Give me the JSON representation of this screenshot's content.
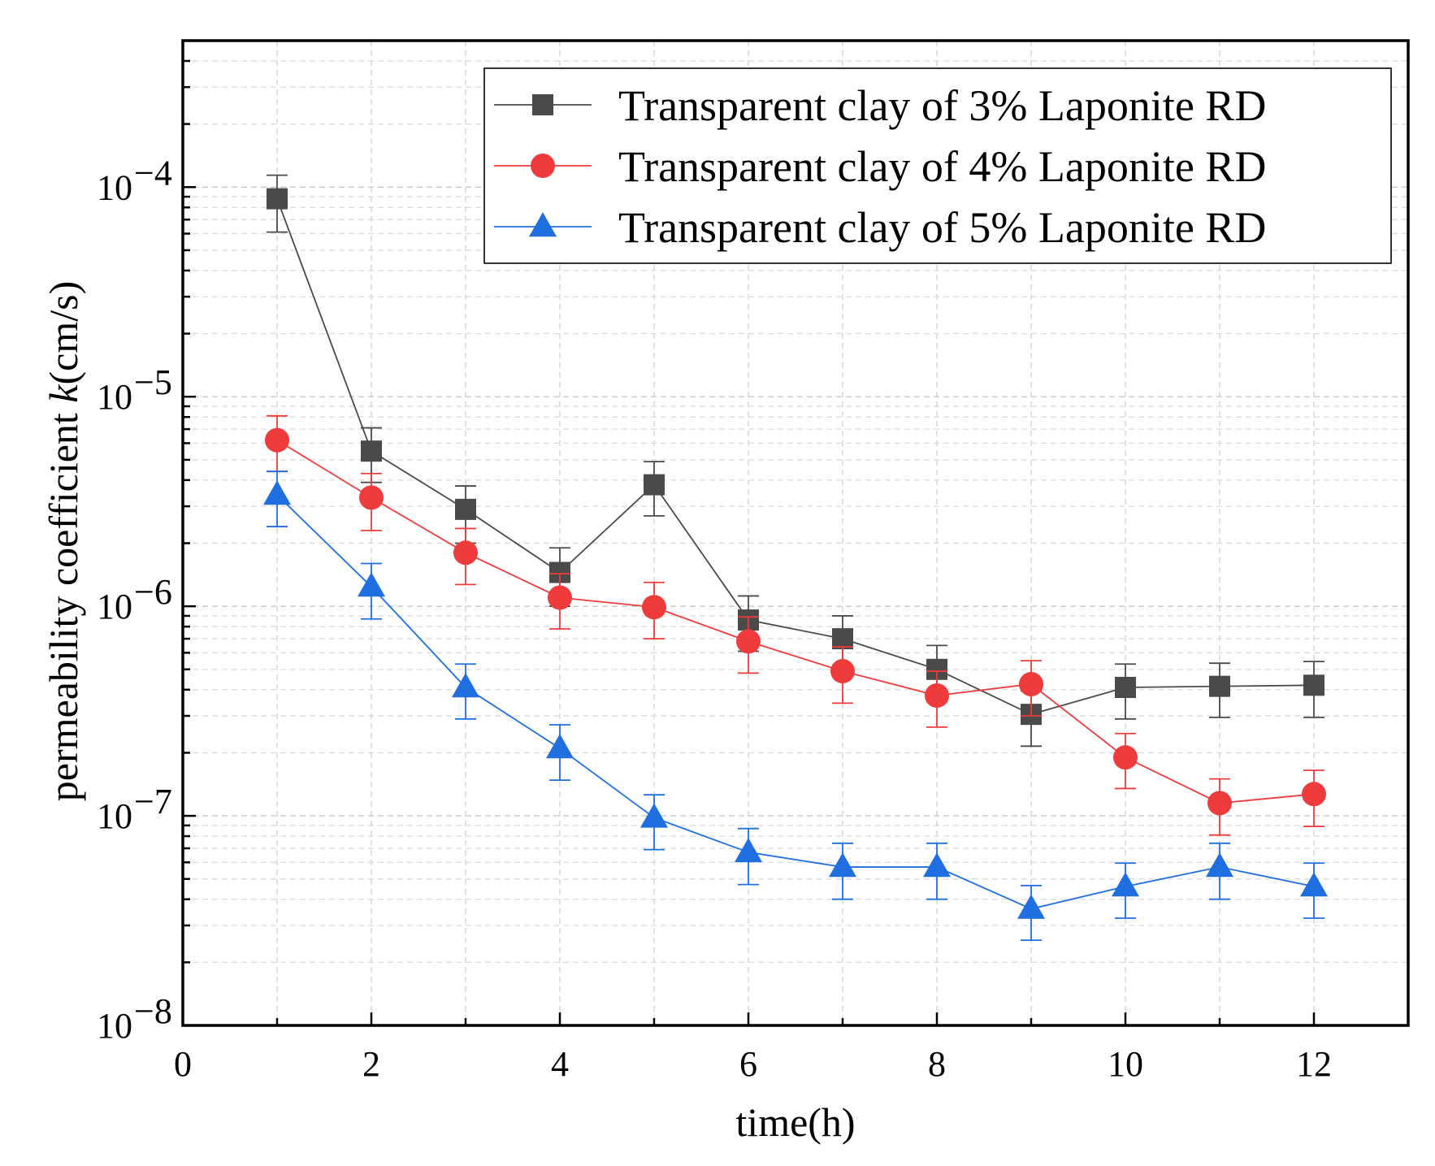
{
  "chart_data": {
    "type": "line",
    "xlabel": "time(h)",
    "ylabel_prefix": "permeability coefficient ",
    "ylabel_italic": "k",
    "ylabel_suffix": "(cm/s)",
    "yscale": "log",
    "xlim": [
      0,
      13
    ],
    "ylim": [
      1e-08,
      0.0005
    ],
    "grid": true,
    "legend_position": "top-right",
    "xticks": [
      0,
      2,
      4,
      6,
      8,
      10,
      12
    ],
    "xtick_labels": [
      "0",
      "2",
      "4",
      "6",
      "8",
      "10",
      "12"
    ],
    "yticks": [
      1e-08,
      1e-07,
      1e-06,
      1e-05,
      0.0001
    ],
    "ytick_labels": [
      {
        "base": "10",
        "exp": "−8"
      },
      {
        "base": "10",
        "exp": "−7"
      },
      {
        "base": "10",
        "exp": "−6"
      },
      {
        "base": "10",
        "exp": "−5"
      },
      {
        "base": "10",
        "exp": "−4"
      }
    ],
    "series": [
      {
        "name": "Transparent clay of 3% Laponite RD",
        "marker": "square",
        "color": "#4a4a4a",
        "x": [
          1,
          2,
          3,
          4,
          5,
          6,
          7,
          8,
          9,
          10,
          11,
          12
        ],
        "y": [
          8.8e-05,
          5.5e-06,
          2.9e-06,
          1.45e-06,
          3.8e-06,
          8.6e-07,
          7e-07,
          5e-07,
          3.05e-07,
          4.1e-07,
          4.15e-07,
          4.2e-07
        ],
        "err_low": [
          6.1e-05,
          3.9e-06,
          2e-06,
          1e-06,
          2.7e-06,
          6.1e-07,
          4.9e-07,
          3.5e-07,
          2.15e-07,
          2.9e-07,
          2.95e-07,
          2.95e-07
        ],
        "err_high": [
          0.000114,
          7.1e-06,
          3.75e-06,
          1.9e-06,
          4.9e-06,
          1.12e-06,
          9e-07,
          6.5e-07,
          3.95e-07,
          5.3e-07,
          5.35e-07,
          5.45e-07
        ]
      },
      {
        "name": "Transparent clay of 4% Laponite RD",
        "marker": "circle",
        "color": "#ef3b3b",
        "x": [
          1,
          2,
          3,
          4,
          5,
          6,
          7,
          8,
          9,
          10,
          11,
          12
        ],
        "y": [
          6.2e-06,
          3.3e-06,
          1.8e-06,
          1.1e-06,
          9.9e-07,
          6.8e-07,
          4.9e-07,
          3.75e-07,
          4.25e-07,
          1.9e-07,
          1.15e-07,
          1.27e-07
        ],
        "err_low": [
          4.4e-06,
          2.3e-06,
          1.27e-06,
          7.8e-07,
          7e-07,
          4.8e-07,
          3.45e-07,
          2.65e-07,
          3e-07,
          1.35e-07,
          8.1e-08,
          8.9e-08
        ],
        "err_high": [
          8.1e-06,
          4.3e-06,
          2.35e-06,
          1.43e-06,
          1.3e-06,
          8.9e-07,
          6.4e-07,
          4.9e-07,
          5.5e-07,
          2.47e-07,
          1.5e-07,
          1.65e-07
        ]
      },
      {
        "name": "Transparent clay of 5% Laponite RD",
        "marker": "triangle",
        "color": "#1f6fe0",
        "x": [
          1,
          2,
          3,
          4,
          5,
          6,
          7,
          8,
          9,
          10,
          11,
          12
        ],
        "y": [
          3.4e-06,
          1.24e-06,
          4.1e-07,
          2.1e-07,
          9.8e-08,
          6.7e-08,
          5.7e-08,
          5.7e-08,
          3.6e-08,
          4.6e-08,
          5.7e-08,
          4.6e-08
        ],
        "err_low": [
          2.4e-06,
          8.7e-07,
          2.9e-07,
          1.48e-07,
          6.9e-08,
          4.7e-08,
          4e-08,
          4e-08,
          2.55e-08,
          3.25e-08,
          4e-08,
          3.25e-08
        ],
        "err_high": [
          4.4e-06,
          1.6e-06,
          5.3e-07,
          2.72e-07,
          1.26e-07,
          8.7e-08,
          7.4e-08,
          7.4e-08,
          4.65e-08,
          5.95e-08,
          7.4e-08,
          5.95e-08
        ]
      }
    ]
  }
}
